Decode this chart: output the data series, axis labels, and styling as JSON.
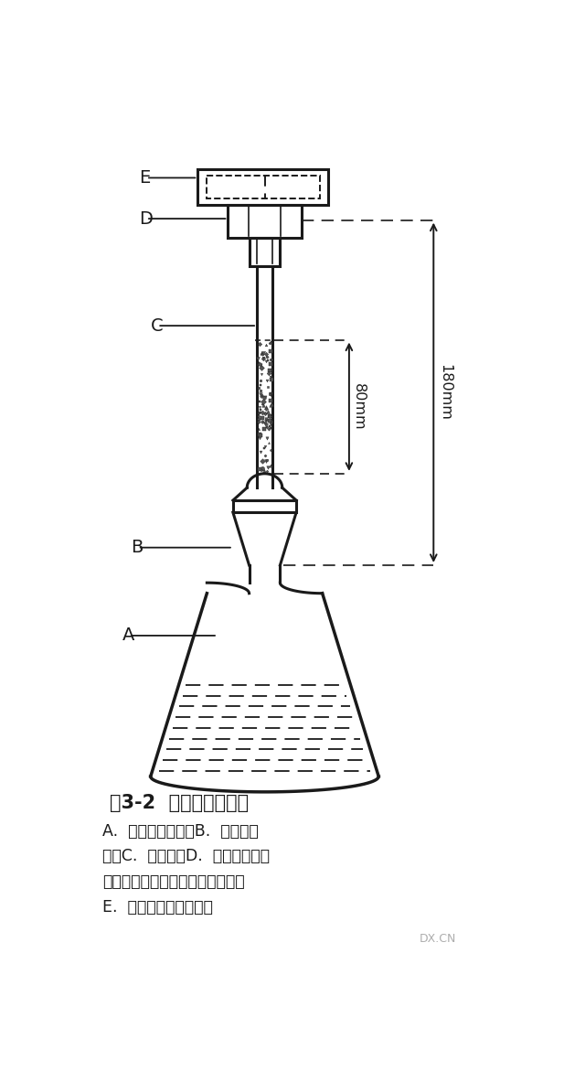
{
  "bg_color": "#ffffff",
  "line_color": "#1a1a1a",
  "fig_width": 6.4,
  "fig_height": 11.71,
  "title": "图3-2  古蔡法检砷装置",
  "caption_line1": "A.  砷化氢发生瓶；B.  中空磨口",
  "caption_line2": "塞；C.  导气管；D.  具孔有机玻璃",
  "caption_line3": "旋塞（孔径与导气管内径一致）；",
  "caption_line4": "E.  具孔有机玻璃旋塞盖",
  "watermark": "DX.CN",
  "label_A": "A",
  "label_B": "B",
  "label_C": "C",
  "label_D": "D",
  "label_E": "E",
  "dim_80mm": "80mm",
  "dim_180mm": "180mm"
}
